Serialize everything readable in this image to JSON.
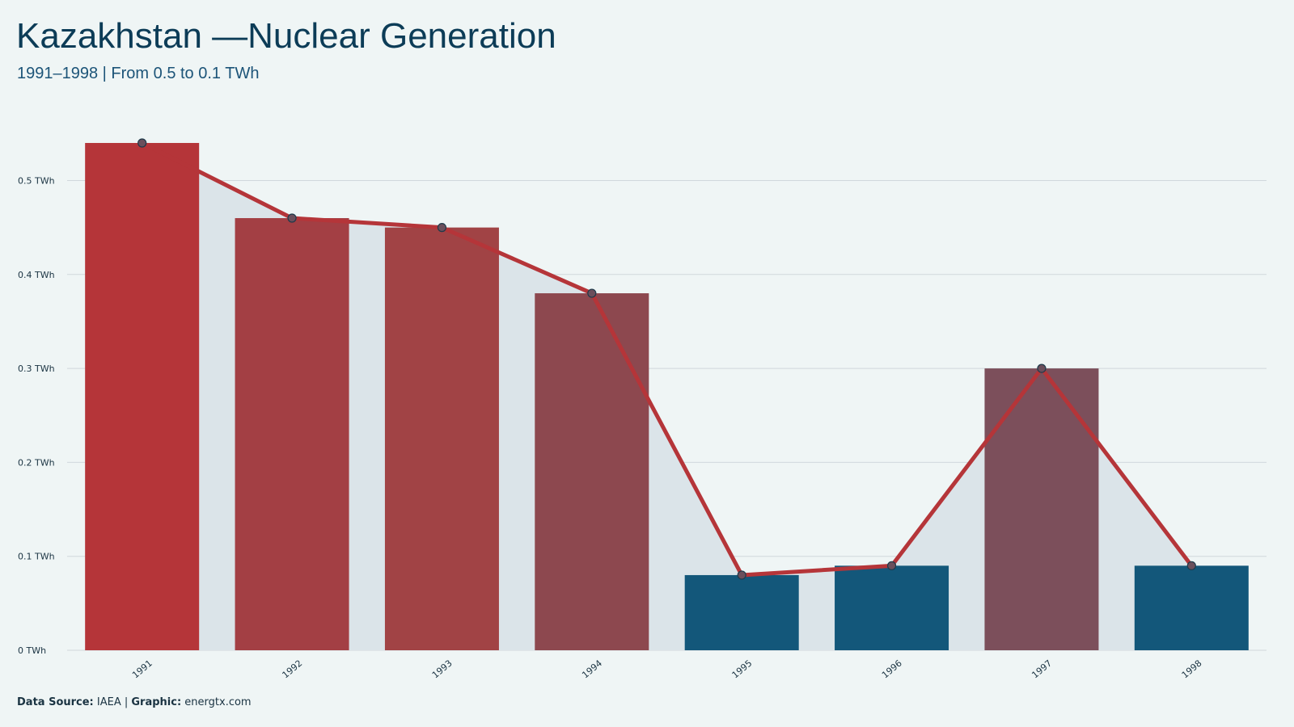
{
  "title": "Kazakhstan —Nuclear Generation",
  "subtitle": "1991–1998 | From 0.5 to 0.1 TWh",
  "footer": {
    "source_label": "Data Source:",
    "source_value": " IAEA | ",
    "graphic_label": "Graphic:",
    "graphic_value": " energtx.com"
  },
  "colors": {
    "background": "#eff5f5",
    "area": "#dbe4e9",
    "line": "#b53539",
    "high": "#b53539",
    "low": "#13577a",
    "grid": "#d0d8dc"
  },
  "chart_data": {
    "type": "bar",
    "categories": [
      "1991",
      "1992",
      "1993",
      "1994",
      "1995",
      "1996",
      "1997",
      "1998"
    ],
    "values": [
      0.54,
      0.46,
      0.45,
      0.38,
      0.08,
      0.09,
      0.3,
      0.09
    ],
    "bar_colors": [
      "#b53539",
      "#a33f44",
      "#a14345",
      "#8d484f",
      "#13577a",
      "#13577a",
      "#7c4f5b",
      "#13577a"
    ],
    "ylim": [
      0,
      0.55
    ],
    "yticks": [
      0,
      0.1,
      0.2,
      0.3,
      0.4,
      0.5
    ],
    "ytick_labels": [
      "0 TWh",
      "0.1 TWh",
      "0.2 TWh",
      "0.3 TWh",
      "0.4 TWh",
      "0.5 TWh"
    ],
    "overlay": "line with markers and shaded area",
    "grid": true,
    "legend": false
  }
}
